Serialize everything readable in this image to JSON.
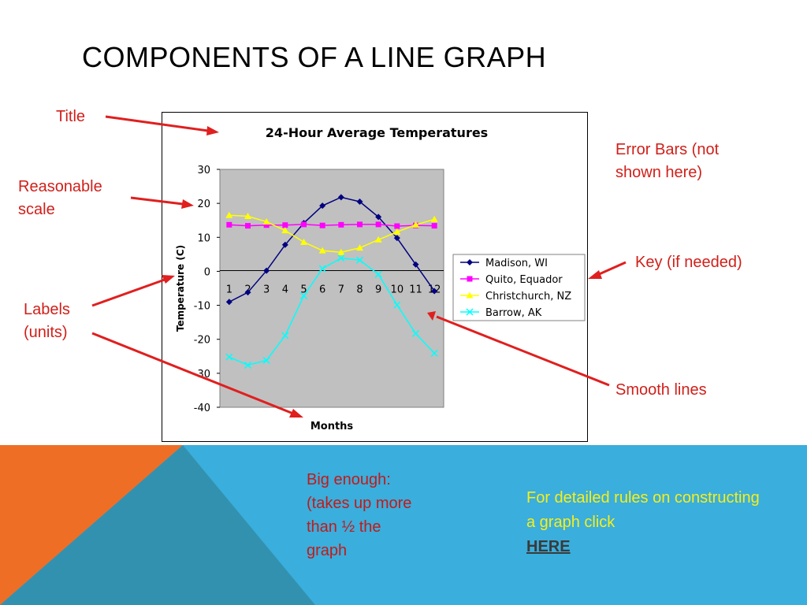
{
  "slide": {
    "title": "COMPONENTS OF A LINE GRAPH"
  },
  "annotations": {
    "title_label": "Title",
    "scale_label": "Reasonable scale",
    "labels_label": "Labels (units)",
    "error_bars_label": "Error Bars (not shown here)",
    "key_label": "Key (if needed)",
    "smooth_label": "Smooth lines"
  },
  "notes": {
    "big_enough": "Big enough: (takes up more than ½ the graph",
    "rules_text": "For detailed rules on constructing a graph click",
    "rules_link": "HERE"
  },
  "colors": {
    "annotation_red": "#d0201a",
    "band_blue": "#3aaedc",
    "band_teal": "#3391b0",
    "band_orange": "#ef6e25",
    "note_yellow": "#f6ef1a",
    "plot_bg": "#c0c0c0"
  },
  "chart_data": {
    "type": "line",
    "title": "24-Hour Average Temperatures",
    "xlabel": "Months",
    "ylabel": "Temperature (C)",
    "categories": [
      "1",
      "2",
      "3",
      "4",
      "5",
      "6",
      "7",
      "8",
      "9",
      "10",
      "11",
      "12"
    ],
    "ylim": [
      -40,
      30
    ],
    "yticks": [
      30,
      20,
      10,
      0,
      -10,
      -20,
      -30,
      -40
    ],
    "grid": false,
    "legend_position": "right",
    "series": [
      {
        "name": "Madison, WI",
        "color": "#000080",
        "marker": "diamond",
        "values": [
          -9,
          -6.2,
          0.2,
          7.8,
          14.2,
          19.3,
          21.8,
          20.5,
          16,
          9.8,
          2,
          -5.8
        ]
      },
      {
        "name": "Quito, Equador",
        "color": "#ff00ff",
        "marker": "square",
        "values": [
          13.7,
          13.4,
          13.6,
          13.6,
          13.8,
          13.5,
          13.7,
          13.8,
          13.8,
          13.3,
          13.5,
          13.4
        ]
      },
      {
        "name": "Christchurch, NZ",
        "color": "#ffff00",
        "marker": "triangle",
        "values": [
          16.5,
          16.2,
          14.6,
          12,
          8.6,
          6.1,
          5.6,
          6.9,
          9.3,
          11.6,
          13.7,
          15.3
        ]
      },
      {
        "name": "Barrow, AK",
        "color": "#00ffff",
        "marker": "x",
        "values": [
          -25.2,
          -27.6,
          -26.2,
          -18.9,
          -7.2,
          0.8,
          3.9,
          3.3,
          -0.9,
          -9.9,
          -18.3,
          -24.1
        ]
      }
    ]
  }
}
